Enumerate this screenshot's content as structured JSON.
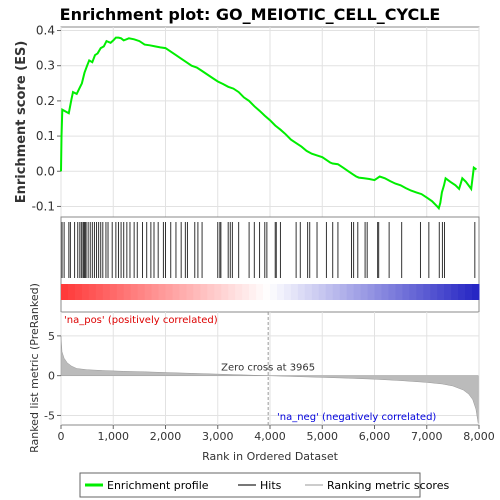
{
  "chart_data": {
    "type": "line",
    "title": "Enrichment plot: GO_MEIOTIC_CELL_CYCLE",
    "xlabel": "Rank in Ordered Dataset",
    "top_panel": {
      "ylabel": "Enrichment score (ES)",
      "ylim": [
        -0.13,
        0.41
      ],
      "yticks": [
        "-0.1",
        "0.0",
        "0.1",
        "0.2",
        "0.3",
        "0.4"
      ],
      "series_color": "#00ee00",
      "points": [
        [
          0,
          0
        ],
        [
          10,
          0.1
        ],
        [
          25,
          0.175
        ],
        [
          150,
          0.165
        ],
        [
          200,
          0.205
        ],
        [
          230,
          0.225
        ],
        [
          300,
          0.22
        ],
        [
          350,
          0.235
        ],
        [
          400,
          0.25
        ],
        [
          450,
          0.28
        ],
        [
          500,
          0.3
        ],
        [
          540,
          0.315
        ],
        [
          600,
          0.31
        ],
        [
          650,
          0.33
        ],
        [
          700,
          0.335
        ],
        [
          760,
          0.35
        ],
        [
          820,
          0.355
        ],
        [
          870,
          0.37
        ],
        [
          950,
          0.365
        ],
        [
          1000,
          0.372
        ],
        [
          1050,
          0.38
        ],
        [
          1100,
          0.38
        ],
        [
          1150,
          0.378
        ],
        [
          1200,
          0.372
        ],
        [
          1300,
          0.378
        ],
        [
          1400,
          0.375
        ],
        [
          1500,
          0.37
        ],
        [
          1600,
          0.36
        ],
        [
          1700,
          0.358
        ],
        [
          1800,
          0.355
        ],
        [
          1900,
          0.352
        ],
        [
          2000,
          0.35
        ],
        [
          2100,
          0.34
        ],
        [
          2200,
          0.33
        ],
        [
          2300,
          0.32
        ],
        [
          2400,
          0.31
        ],
        [
          2500,
          0.3
        ],
        [
          2600,
          0.295
        ],
        [
          2700,
          0.285
        ],
        [
          2800,
          0.275
        ],
        [
          2900,
          0.265
        ],
        [
          3000,
          0.255
        ],
        [
          3100,
          0.248
        ],
        [
          3200,
          0.24
        ],
        [
          3300,
          0.235
        ],
        [
          3400,
          0.225
        ],
        [
          3500,
          0.21
        ],
        [
          3600,
          0.2
        ],
        [
          3700,
          0.185
        ],
        [
          3800,
          0.172
        ],
        [
          3900,
          0.158
        ],
        [
          4000,
          0.145
        ],
        [
          4100,
          0.13
        ],
        [
          4200,
          0.118
        ],
        [
          4300,
          0.105
        ],
        [
          4400,
          0.09
        ],
        [
          4500,
          0.08
        ],
        [
          4600,
          0.07
        ],
        [
          4700,
          0.058
        ],
        [
          4800,
          0.05
        ],
        [
          4900,
          0.045
        ],
        [
          5000,
          0.04
        ],
        [
          5100,
          0.03
        ],
        [
          5150,
          0.025
        ],
        [
          5200,
          0.022
        ],
        [
          5300,
          0.02
        ],
        [
          5400,
          0.01
        ],
        [
          5500,
          0.0
        ],
        [
          5600,
          -0.01
        ],
        [
          5650,
          -0.015
        ],
        [
          5700,
          -0.018
        ],
        [
          5800,
          -0.02
        ],
        [
          5900,
          -0.022
        ],
        [
          6000,
          -0.025
        ],
        [
          6050,
          -0.02
        ],
        [
          6100,
          -0.015
        ],
        [
          6200,
          -0.02
        ],
        [
          6300,
          -0.028
        ],
        [
          6400,
          -0.035
        ],
        [
          6500,
          -0.04
        ],
        [
          6600,
          -0.048
        ],
        [
          6700,
          -0.055
        ],
        [
          6800,
          -0.06
        ],
        [
          6900,
          -0.065
        ],
        [
          7000,
          -0.075
        ],
        [
          7100,
          -0.085
        ],
        [
          7200,
          -0.1
        ],
        [
          7230,
          -0.105
        ],
        [
          7260,
          -0.09
        ],
        [
          7290,
          -0.06
        ],
        [
          7330,
          -0.04
        ],
        [
          7360,
          -0.02
        ],
        [
          7450,
          -0.03
        ],
        [
          7550,
          -0.04
        ],
        [
          7620,
          -0.05
        ],
        [
          7680,
          -0.02
        ],
        [
          7750,
          -0.03
        ],
        [
          7850,
          -0.05
        ],
        [
          7900,
          0.01
        ],
        [
          7950,
          0.005
        ]
      ]
    },
    "hits": [
      20,
      60,
      150,
      180,
      260,
      320,
      360,
      390,
      420,
      440,
      460,
      480,
      520,
      560,
      600,
      640,
      680,
      720,
      760,
      800,
      860,
      900,
      980,
      1050,
      1100,
      1150,
      1200,
      1260,
      1320,
      1400,
      1460,
      1560,
      1640,
      1720,
      1780,
      1860,
      1960,
      2000,
      2100,
      2200,
      2300,
      2380,
      2420,
      2560,
      2620,
      2700,
      3000,
      3040,
      3060,
      3200,
      3240,
      3280,
      3400,
      3600,
      3700,
      3800,
      3900,
      3940,
      4100,
      4120,
      4200,
      4500,
      4580,
      4720,
      4760,
      4900,
      5080,
      5200,
      5300,
      5560,
      5600,
      5680,
      5820,
      5860,
      6060,
      6080,
      6280,
      6520,
      6880,
      7040,
      7240,
      7300,
      7340,
      7920
    ],
    "ranking_panel": {
      "ylabel": "Ranked list metric (PreRanked)",
      "ylim": [
        -6.2,
        8
      ],
      "yticks": [
        "-5",
        "0",
        "5"
      ],
      "zero_cross_label": "Zero cross at 3965",
      "zero_cross": 3965,
      "pos_label": "'na_pos' (positively correlated)",
      "neg_label": "'na_neg' (negatively correlated)",
      "points": [
        [
          0,
          5
        ],
        [
          20,
          3
        ],
        [
          60,
          2.2
        ],
        [
          120,
          1.6
        ],
        [
          200,
          1.2
        ],
        [
          300,
          0.9
        ],
        [
          500,
          0.75
        ],
        [
          800,
          0.65
        ],
        [
          1200,
          0.55
        ],
        [
          1600,
          0.48
        ],
        [
          2000,
          0.4
        ],
        [
          2500,
          0.3
        ],
        [
          3000,
          0.2
        ],
        [
          3500,
          0.1
        ],
        [
          3965,
          0
        ],
        [
          4500,
          -0.12
        ],
        [
          5000,
          -0.22
        ],
        [
          5500,
          -0.32
        ],
        [
          6000,
          -0.45
        ],
        [
          6500,
          -0.62
        ],
        [
          7000,
          -0.85
        ],
        [
          7300,
          -1.05
        ],
        [
          7500,
          -1.3
        ],
        [
          7700,
          -1.8
        ],
        [
          7800,
          -2.3
        ],
        [
          7880,
          -3
        ],
        [
          7940,
          -4.2
        ],
        [
          7985,
          -6
        ]
      ]
    },
    "xlim": [
      0,
      8000
    ],
    "xticks": [
      "0",
      "1,000",
      "2,000",
      "3,000",
      "4,000",
      "5,000",
      "6,000",
      "7,000",
      "8,000"
    ],
    "legend": {
      "placement": "bottom",
      "entries": [
        "Enrichment profile",
        "Hits",
        "Ranking metric scores"
      ],
      "colors": [
        "#00ee00",
        "#777777",
        "#cccccc"
      ]
    }
  }
}
